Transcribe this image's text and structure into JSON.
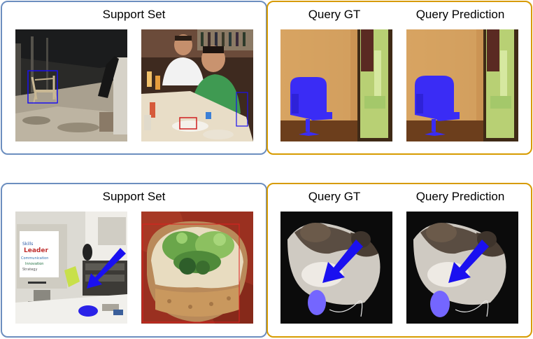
{
  "rows": [
    {
      "support": {
        "title": "Support Set",
        "images": [
          {
            "name": "support-image-chair-room",
            "annotation": "chair-bbox"
          },
          {
            "name": "support-image-restaurant",
            "annotation": "chair-bbox"
          }
        ]
      },
      "query": {
        "gt_title": "Query GT",
        "pred_title": "Query Prediction",
        "object": "chair",
        "mask_color": "#3a2cf5"
      }
    },
    {
      "support": {
        "title": "Support Set",
        "images": [
          {
            "name": "support-image-office-desk",
            "annotation": "arrow-and-mouse-mask"
          },
          {
            "name": "support-image-food-closeup",
            "annotation": "bbox"
          }
        ]
      },
      "query": {
        "gt_title": "Query GT",
        "pred_title": "Query Prediction",
        "object": "computer-mouse",
        "mask_color": "#7466ff"
      }
    }
  ],
  "colors": {
    "support_border": "#6c8ebf",
    "query_border": "#d79b00",
    "arrow": "#1a10f0"
  }
}
